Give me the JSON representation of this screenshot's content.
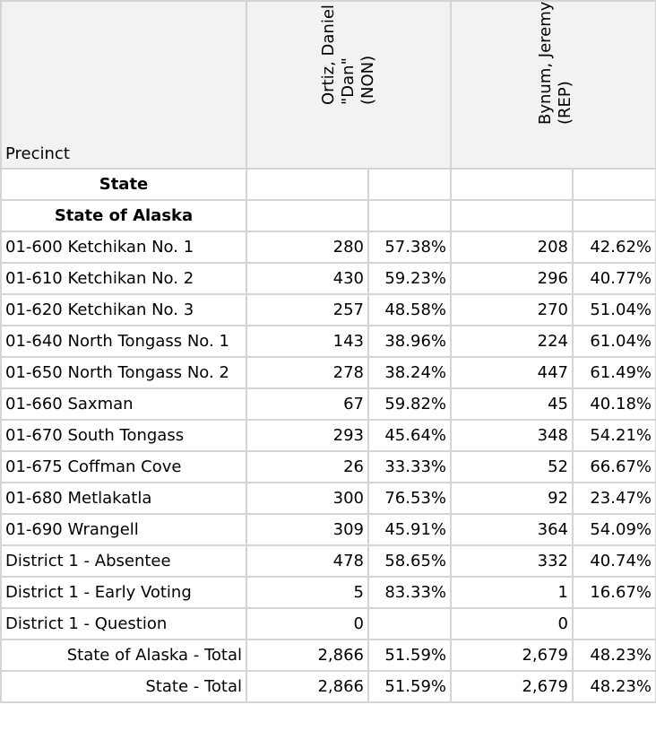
{
  "header": {
    "precinct_label": "Precinct",
    "candidates": [
      {
        "name_line1": "Ortiz, Daniel H.",
        "name_line2": "\"Dan\"",
        "party": "(NON)"
      },
      {
        "name_line1": "Bynum, Jeremy T.",
        "name_line2": "",
        "party": "(REP)"
      }
    ]
  },
  "rows": [
    {
      "precinct": "State",
      "c1_votes": "",
      "c1_pct": "",
      "c2_votes": "",
      "c2_pct": "",
      "style": "bold"
    },
    {
      "precinct": "State of Alaska",
      "c1_votes": "",
      "c1_pct": "",
      "c2_votes": "",
      "c2_pct": "",
      "style": "bold"
    },
    {
      "precinct": "01-600 Ketchikan No. 1",
      "c1_votes": "280",
      "c1_pct": "57.38%",
      "c2_votes": "208",
      "c2_pct": "42.62%",
      "style": "normal"
    },
    {
      "precinct": "01-610 Ketchikan No. 2",
      "c1_votes": "430",
      "c1_pct": "59.23%",
      "c2_votes": "296",
      "c2_pct": "40.77%",
      "style": "normal"
    },
    {
      "precinct": "01-620 Ketchikan No. 3",
      "c1_votes": "257",
      "c1_pct": "48.58%",
      "c2_votes": "270",
      "c2_pct": "51.04%",
      "style": "normal"
    },
    {
      "precinct": "01-640 North Tongass No. 1",
      "c1_votes": "143",
      "c1_pct": "38.96%",
      "c2_votes": "224",
      "c2_pct": "61.04%",
      "style": "normal"
    },
    {
      "precinct": "01-650 North Tongass No. 2",
      "c1_votes": "278",
      "c1_pct": "38.24%",
      "c2_votes": "447",
      "c2_pct": "61.49%",
      "style": "normal"
    },
    {
      "precinct": "01-660 Saxman",
      "c1_votes": "67",
      "c1_pct": "59.82%",
      "c2_votes": "45",
      "c2_pct": "40.18%",
      "style": "normal"
    },
    {
      "precinct": "01-670 South Tongass",
      "c1_votes": "293",
      "c1_pct": "45.64%",
      "c2_votes": "348",
      "c2_pct": "54.21%",
      "style": "normal"
    },
    {
      "precinct": "01-675 Coffman Cove",
      "c1_votes": "26",
      "c1_pct": "33.33%",
      "c2_votes": "52",
      "c2_pct": "66.67%",
      "style": "normal"
    },
    {
      "precinct": "01-680 Metlakatla",
      "c1_votes": "300",
      "c1_pct": "76.53%",
      "c2_votes": "92",
      "c2_pct": "23.47%",
      "style": "normal"
    },
    {
      "precinct": "01-690 Wrangell",
      "c1_votes": "309",
      "c1_pct": "45.91%",
      "c2_votes": "364",
      "c2_pct": "54.09%",
      "style": "normal"
    },
    {
      "precinct": "District 1 - Absentee",
      "c1_votes": "478",
      "c1_pct": "58.65%",
      "c2_votes": "332",
      "c2_pct": "40.74%",
      "style": "normal"
    },
    {
      "precinct": "District 1 - Early Voting",
      "c1_votes": "5",
      "c1_pct": "83.33%",
      "c2_votes": "1",
      "c2_pct": "16.67%",
      "style": "normal"
    },
    {
      "precinct": "District 1  - Question",
      "c1_votes": "0",
      "c1_pct": "",
      "c2_votes": "0",
      "c2_pct": "",
      "style": "normal"
    },
    {
      "precinct": "State of Alaska - Total",
      "c1_votes": "2,866",
      "c1_pct": "51.59%",
      "c2_votes": "2,679",
      "c2_pct": "48.23%",
      "style": "total"
    },
    {
      "precinct": "State - Total",
      "c1_votes": "2,866",
      "c1_pct": "51.59%",
      "c2_votes": "2,679",
      "c2_pct": "48.23%",
      "style": "total"
    }
  ]
}
